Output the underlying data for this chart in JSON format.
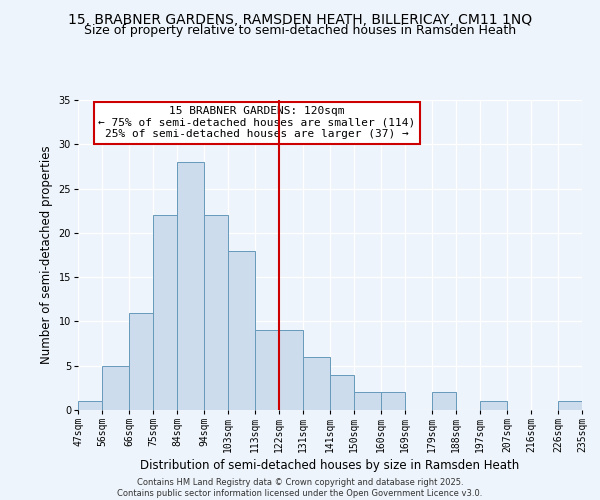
{
  "title_line1": "15, BRABNER GARDENS, RAMSDEN HEATH, BILLERICAY, CM11 1NQ",
  "title_line2": "Size of property relative to semi-detached houses in Ramsden Heath",
  "xlabel": "Distribution of semi-detached houses by size in Ramsden Heath",
  "ylabel": "Number of semi-detached properties",
  "bin_edges": [
    47,
    56,
    66,
    75,
    84,
    94,
    103,
    113,
    122,
    131,
    141,
    150,
    160,
    169,
    179,
    188,
    197,
    207,
    216,
    226,
    235
  ],
  "counts": [
    1,
    5,
    11,
    22,
    28,
    22,
    18,
    9,
    9,
    6,
    4,
    2,
    2,
    0,
    2,
    0,
    1,
    0,
    0,
    1
  ],
  "bar_color": "#ccdcec",
  "bar_edge_color": "#6699bb",
  "vline_x": 122,
  "vline_color": "#cc0000",
  "annotation_title": "15 BRABNER GARDENS: 120sqm",
  "annotation_line1": "← 75% of semi-detached houses are smaller (114)",
  "annotation_line2": "25% of semi-detached houses are larger (37) →",
  "annotation_box_color": "#ffffff",
  "annotation_edge_color": "#cc0000",
  "ylim": [
    0,
    35
  ],
  "yticks": [
    0,
    5,
    10,
    15,
    20,
    25,
    30,
    35
  ],
  "tick_labels": [
    "47sqm",
    "56sqm",
    "66sqm",
    "75sqm",
    "84sqm",
    "94sqm",
    "103sqm",
    "113sqm",
    "122sqm",
    "131sqm",
    "141sqm",
    "150sqm",
    "160sqm",
    "169sqm",
    "179sqm",
    "188sqm",
    "197sqm",
    "207sqm",
    "216sqm",
    "226sqm",
    "235sqm"
  ],
  "background_color": "#eef4fb",
  "footer_line1": "Contains HM Land Registry data © Crown copyright and database right 2025.",
  "footer_line2": "Contains public sector information licensed under the Open Government Licence v3.0.",
  "title_fontsize": 10,
  "subtitle_fontsize": 9,
  "axis_label_fontsize": 8.5,
  "tick_fontsize": 7,
  "annotation_fontsize": 8,
  "footer_fontsize": 6
}
